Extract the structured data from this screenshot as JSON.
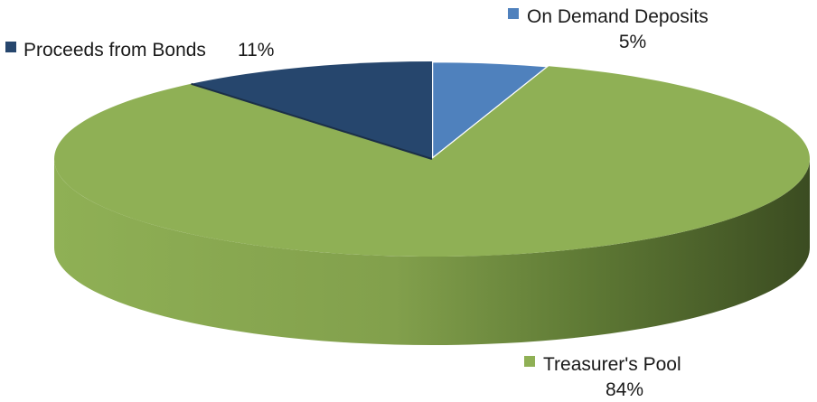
{
  "chart_data": {
    "type": "pie",
    "title": "",
    "slices": [
      {
        "name": "On Demand Deposits",
        "value": 5,
        "value_label": "5%",
        "color": "#4f81bd",
        "side_color": "#3a6597"
      },
      {
        "name": "Treasurer's Pool",
        "value": 84,
        "value_label": "84%",
        "color": "#8fb055",
        "side_color": "#769544"
      },
      {
        "name": "Proceeds from Bonds",
        "value": 11,
        "value_label": "11%",
        "color": "#26466d",
        "side_color": "#1c3553"
      }
    ],
    "style": "3d-pie",
    "start": "top-center",
    "direction": "clockwise"
  }
}
